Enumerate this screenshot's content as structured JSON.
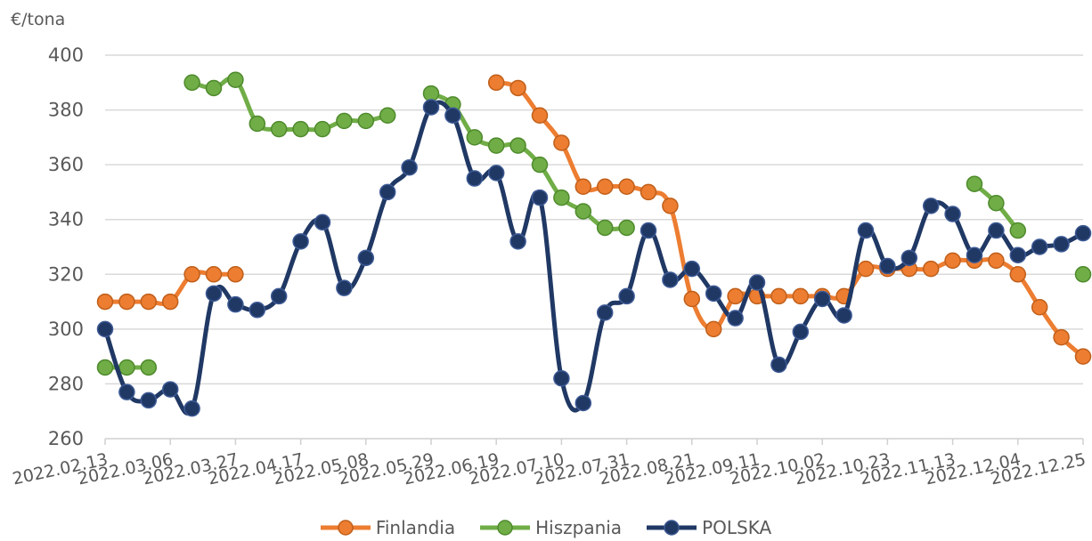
{
  "chart_data": {
    "type": "line",
    "ylabel": "€/tona",
    "xlabel": "",
    "ylim": [
      260,
      400
    ],
    "yticks": [
      260,
      280,
      300,
      320,
      340,
      360,
      380,
      400
    ],
    "x_ticks": [
      "2022.02.13",
      "2022.03.06",
      "2022.03.27",
      "2022.04.17",
      "2022.05.08",
      "2022.05.29",
      "2022.06.19",
      "2022.07.10",
      "2022.07.31",
      "2022.08.21",
      "2022.09.11",
      "2022.10.02",
      "2022.10.23",
      "2022.11.13",
      "2022.12.04",
      "2022.12.25"
    ],
    "x_weeks": [
      "2022.02.13",
      "2022.02.20",
      "2022.02.27",
      "2022.03.06",
      "2022.03.13",
      "2022.03.20",
      "2022.03.27",
      "2022.04.03",
      "2022.04.10",
      "2022.04.17",
      "2022.04.24",
      "2022.05.01",
      "2022.05.08",
      "2022.05.15",
      "2022.05.22",
      "2022.05.29",
      "2022.06.05",
      "2022.06.12",
      "2022.06.19",
      "2022.06.26",
      "2022.07.03",
      "2022.07.10",
      "2022.07.17",
      "2022.07.24",
      "2022.07.31",
      "2022.08.07",
      "2022.08.14",
      "2022.08.21",
      "2022.08.28",
      "2022.09.04",
      "2022.09.11",
      "2022.09.18",
      "2022.09.25",
      "2022.10.02",
      "2022.10.09",
      "2022.10.16",
      "2022.10.23",
      "2022.10.30",
      "2022.11.06",
      "2022.11.13",
      "2022.11.20",
      "2022.11.27",
      "2022.12.04",
      "2022.12.11",
      "2022.12.18",
      "2022.12.25"
    ],
    "grid": true,
    "legend_position": "bottom",
    "series": [
      {
        "name": "Finlandia",
        "color": "#ED7D31",
        "values": [
          310,
          310,
          310,
          310,
          320,
          320,
          320,
          null,
          null,
          null,
          null,
          null,
          null,
          null,
          null,
          null,
          null,
          null,
          390,
          388,
          378,
          368,
          352,
          352,
          352,
          350,
          345,
          311,
          300,
          312,
          312,
          312,
          312,
          312,
          312,
          322,
          322,
          322,
          322,
          325,
          325,
          325,
          320,
          308,
          297,
          290
        ]
      },
      {
        "name": "Hiszpania",
        "color": "#70AD47",
        "values": [
          286,
          286,
          286,
          null,
          390,
          388,
          391,
          375,
          373,
          373,
          373,
          376,
          376,
          378,
          null,
          386,
          382,
          370,
          367,
          367,
          360,
          348,
          343,
          337,
          337,
          null,
          null,
          null,
          null,
          null,
          null,
          null,
          null,
          null,
          null,
          null,
          null,
          null,
          null,
          null,
          353,
          346,
          336,
          null,
          null,
          320
        ]
      },
      {
        "name": "POLSKA",
        "color": "#203864",
        "values": [
          300,
          277,
          274,
          278,
          271,
          313,
          309,
          307,
          312,
          332,
          339,
          315,
          326,
          350,
          359,
          381,
          378,
          355,
          357,
          332,
          348,
          282,
          273,
          306,
          312,
          336,
          318,
          322,
          313,
          304,
          317,
          287,
          299,
          311,
          305,
          336,
          323,
          326,
          345,
          342,
          327,
          336,
          327,
          330,
          331,
          335
        ]
      }
    ]
  }
}
